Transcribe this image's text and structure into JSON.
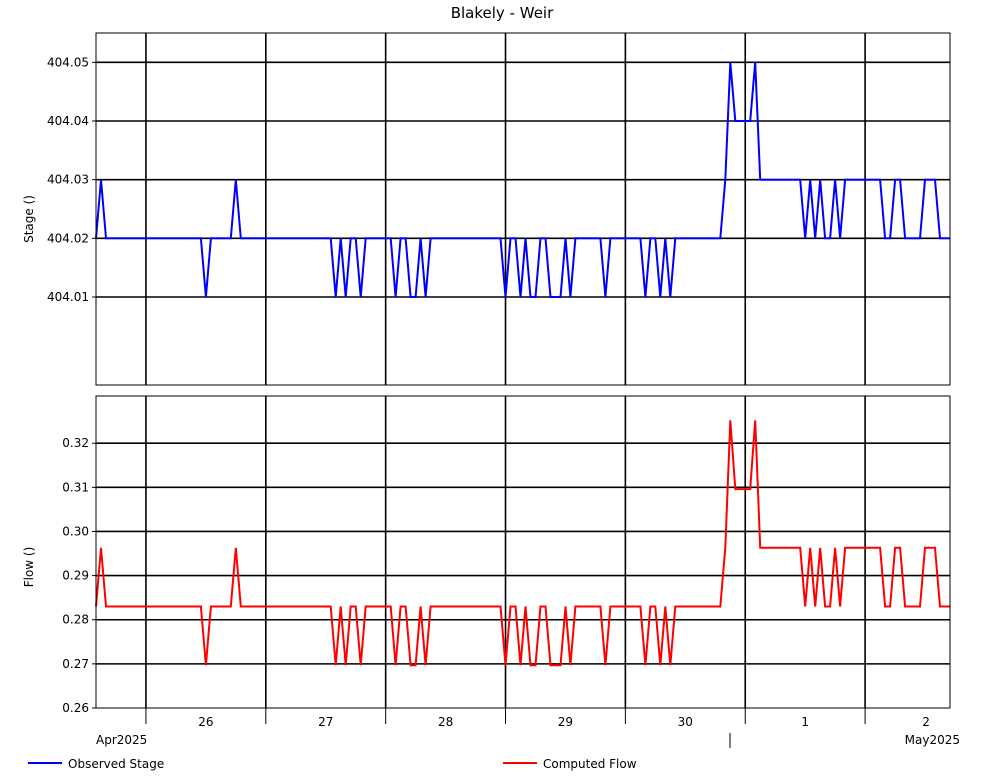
{
  "chart_data": [
    {
      "type": "line",
      "title": "Blakely - Weir",
      "ylabel": "Stage ()",
      "ylim": [
        403.995,
        404.055
      ],
      "yticks": [
        404.01,
        404.02,
        404.03,
        404.04,
        404.05
      ],
      "ytick_labels": [
        "404.01",
        "404.02",
        "404.03",
        "404.04",
        "404.05"
      ],
      "grid": true,
      "x_start": "2025-04-25T14:00",
      "x_end": "2025-05-02T17:00",
      "series": [
        {
          "name": "Observed Stage",
          "color": "#0000ff",
          "values": [
            [
              "2025-04-25T14:00",
              404.02
            ],
            [
              "2025-04-25T15:00",
              404.03
            ],
            [
              "2025-04-25T16:00",
              404.02
            ],
            [
              "2025-04-26T11:00",
              404.02
            ],
            [
              "2025-04-26T12:00",
              404.01
            ],
            [
              "2025-04-26T13:00",
              404.02
            ],
            [
              "2025-04-26T17:00",
              404.02
            ],
            [
              "2025-04-26T18:00",
              404.03
            ],
            [
              "2025-04-26T19:00",
              404.02
            ],
            [
              "2025-04-27T13:00",
              404.02
            ],
            [
              "2025-04-27T14:00",
              404.01
            ],
            [
              "2025-04-27T15:00",
              404.02
            ],
            [
              "2025-04-27T16:00",
              404.01
            ],
            [
              "2025-04-27T17:00",
              404.02
            ],
            [
              "2025-04-27T18:00",
              404.02
            ],
            [
              "2025-04-27T19:00",
              404.01
            ],
            [
              "2025-04-27T20:00",
              404.02
            ],
            [
              "2025-04-28T01:00",
              404.02
            ],
            [
              "2025-04-28T02:00",
              404.01
            ],
            [
              "2025-04-28T03:00",
              404.02
            ],
            [
              "2025-04-28T04:00",
              404.02
            ],
            [
              "2025-04-28T05:00",
              404.01
            ],
            [
              "2025-04-28T06:00",
              404.01
            ],
            [
              "2025-04-28T07:00",
              404.02
            ],
            [
              "2025-04-28T08:00",
              404.01
            ],
            [
              "2025-04-28T09:00",
              404.02
            ],
            [
              "2025-04-28T23:00",
              404.02
            ],
            [
              "2025-04-29T00:00",
              404.01
            ],
            [
              "2025-04-29T01:00",
              404.02
            ],
            [
              "2025-04-29T02:00",
              404.02
            ],
            [
              "2025-04-29T03:00",
              404.01
            ],
            [
              "2025-04-29T04:00",
              404.02
            ],
            [
              "2025-04-29T05:00",
              404.01
            ],
            [
              "2025-04-29T06:00",
              404.01
            ],
            [
              "2025-04-29T07:00",
              404.02
            ],
            [
              "2025-04-29T08:00",
              404.02
            ],
            [
              "2025-04-29T09:00",
              404.01
            ],
            [
              "2025-04-29T11:00",
              404.01
            ],
            [
              "2025-04-29T12:00",
              404.02
            ],
            [
              "2025-04-29T13:00",
              404.01
            ],
            [
              "2025-04-29T14:00",
              404.02
            ],
            [
              "2025-04-29T18:00",
              404.02
            ],
            [
              "2025-04-29T19:00",
              404.02
            ],
            [
              "2025-04-29T20:00",
              404.01
            ],
            [
              "2025-04-29T21:00",
              404.02
            ],
            [
              "2025-04-30T03:00",
              404.02
            ],
            [
              "2025-04-30T04:00",
              404.01
            ],
            [
              "2025-04-30T05:00",
              404.02
            ],
            [
              "2025-04-30T06:00",
              404.02
            ],
            [
              "2025-04-30T07:00",
              404.01
            ],
            [
              "2025-04-30T08:00",
              404.02
            ],
            [
              "2025-04-30T09:00",
              404.01
            ],
            [
              "2025-04-30T10:00",
              404.02
            ],
            [
              "2025-04-30T12:00",
              404.02
            ],
            [
              "2025-04-30T19:00",
              404.02
            ],
            [
              "2025-04-30T20:00",
              404.03
            ],
            [
              "2025-04-30T21:00",
              404.05
            ],
            [
              "2025-04-30T22:00",
              404.04
            ],
            [
              "2025-04-30T23:00",
              404.04
            ],
            [
              "2025-05-01T01:00",
              404.04
            ],
            [
              "2025-05-01T02:00",
              404.05
            ],
            [
              "2025-05-01T03:00",
              404.03
            ],
            [
              "2025-05-01T11:00",
              404.03
            ],
            [
              "2025-05-01T12:00",
              404.02
            ],
            [
              "2025-05-01T13:00",
              404.03
            ],
            [
              "2025-05-01T14:00",
              404.02
            ],
            [
              "2025-05-01T15:00",
              404.03
            ],
            [
              "2025-05-01T16:00",
              404.02
            ],
            [
              "2025-05-01T17:00",
              404.02
            ],
            [
              "2025-05-01T18:00",
              404.03
            ],
            [
              "2025-05-01T19:00",
              404.02
            ],
            [
              "2025-05-01T20:00",
              404.03
            ],
            [
              "2025-05-02T01:00",
              404.03
            ],
            [
              "2025-05-02T03:00",
              404.03
            ],
            [
              "2025-05-02T04:00",
              404.02
            ],
            [
              "2025-05-02T05:00",
              404.02
            ],
            [
              "2025-05-02T06:00",
              404.03
            ],
            [
              "2025-05-02T07:00",
              404.03
            ],
            [
              "2025-05-02T08:00",
              404.02
            ],
            [
              "2025-05-02T10:00",
              404.02
            ],
            [
              "2025-05-02T11:00",
              404.02
            ],
            [
              "2025-05-02T12:00",
              404.03
            ],
            [
              "2025-05-02T14:00",
              404.03
            ],
            [
              "2025-05-02T15:00",
              404.02
            ],
            [
              "2025-05-02T17:00",
              404.02
            ]
          ]
        }
      ]
    },
    {
      "type": "line",
      "ylabel": "Flow ()",
      "ylim": [
        0.26,
        0.3307
      ],
      "yticks": [
        0.26,
        0.27,
        0.28,
        0.29,
        0.3,
        0.31,
        0.32
      ],
      "ytick_labels": [
        "0.26",
        "0.27",
        "0.28",
        "0.29",
        "0.30",
        "0.31",
        "0.32"
      ],
      "grid": true,
      "x_start": "2025-04-25T14:00",
      "x_end": "2025-05-02T17:00",
      "x_ticks": [
        {
          "date": "2025-04-26T00:00",
          "label": "26"
        },
        {
          "date": "2025-04-27T00:00",
          "label": "27"
        },
        {
          "date": "2025-04-28T00:00",
          "label": "28"
        },
        {
          "date": "2025-04-29T00:00",
          "label": "29"
        },
        {
          "date": "2025-04-30T00:00",
          "label": "30"
        },
        {
          "date": "2025-05-01T00:00",
          "label": "1"
        },
        {
          "date": "2025-05-02T00:00",
          "label": "2"
        }
      ],
      "month_labels": [
        "Apr2025",
        "May2025"
      ],
      "series": [
        {
          "name": "Computed Flow",
          "color": "#ff0000",
          "values": [
            [
              "2025-04-25T14:00",
              0.283
            ],
            [
              "2025-04-25T15:00",
              0.2963
            ],
            [
              "2025-04-25T16:00",
              0.283
            ],
            [
              "2025-04-26T11:00",
              0.283
            ],
            [
              "2025-04-26T12:00",
              0.2697
            ],
            [
              "2025-04-26T13:00",
              0.283
            ],
            [
              "2025-04-26T17:00",
              0.283
            ],
            [
              "2025-04-26T18:00",
              0.2963
            ],
            [
              "2025-04-26T19:00",
              0.283
            ],
            [
              "2025-04-27T13:00",
              0.283
            ],
            [
              "2025-04-27T14:00",
              0.2697
            ],
            [
              "2025-04-27T15:00",
              0.283
            ],
            [
              "2025-04-27T16:00",
              0.2697
            ],
            [
              "2025-04-27T17:00",
              0.283
            ],
            [
              "2025-04-27T18:00",
              0.283
            ],
            [
              "2025-04-27T19:00",
              0.2697
            ],
            [
              "2025-04-27T20:00",
              0.283
            ],
            [
              "2025-04-28T01:00",
              0.283
            ],
            [
              "2025-04-28T02:00",
              0.2697
            ],
            [
              "2025-04-28T03:00",
              0.283
            ],
            [
              "2025-04-28T04:00",
              0.283
            ],
            [
              "2025-04-28T05:00",
              0.2697
            ],
            [
              "2025-04-28T06:00",
              0.2697
            ],
            [
              "2025-04-28T07:00",
              0.283
            ],
            [
              "2025-04-28T08:00",
              0.2697
            ],
            [
              "2025-04-28T09:00",
              0.283
            ],
            [
              "2025-04-28T23:00",
              0.283
            ],
            [
              "2025-04-29T00:00",
              0.2697
            ],
            [
              "2025-04-29T01:00",
              0.283
            ],
            [
              "2025-04-29T02:00",
              0.283
            ],
            [
              "2025-04-29T03:00",
              0.2697
            ],
            [
              "2025-04-29T04:00",
              0.283
            ],
            [
              "2025-04-29T05:00",
              0.2697
            ],
            [
              "2025-04-29T06:00",
              0.2697
            ],
            [
              "2025-04-29T07:00",
              0.283
            ],
            [
              "2025-04-29T08:00",
              0.283
            ],
            [
              "2025-04-29T09:00",
              0.2697
            ],
            [
              "2025-04-29T11:00",
              0.2697
            ],
            [
              "2025-04-29T12:00",
              0.283
            ],
            [
              "2025-04-29T13:00",
              0.2697
            ],
            [
              "2025-04-29T14:00",
              0.283
            ],
            [
              "2025-04-29T18:00",
              0.283
            ],
            [
              "2025-04-29T19:00",
              0.283
            ],
            [
              "2025-04-29T20:00",
              0.2697
            ],
            [
              "2025-04-29T21:00",
              0.283
            ],
            [
              "2025-04-30T03:00",
              0.283
            ],
            [
              "2025-04-30T04:00",
              0.2697
            ],
            [
              "2025-04-30T05:00",
              0.283
            ],
            [
              "2025-04-30T06:00",
              0.283
            ],
            [
              "2025-04-30T07:00",
              0.2697
            ],
            [
              "2025-04-30T08:00",
              0.283
            ],
            [
              "2025-04-30T09:00",
              0.2697
            ],
            [
              "2025-04-30T10:00",
              0.283
            ],
            [
              "2025-04-30T12:00",
              0.283
            ],
            [
              "2025-04-30T19:00",
              0.283
            ],
            [
              "2025-04-30T20:00",
              0.2963
            ],
            [
              "2025-04-30T21:00",
              0.3252
            ],
            [
              "2025-04-30T22:00",
              0.3096
            ],
            [
              "2025-04-30T23:00",
              0.3096
            ],
            [
              "2025-05-01T01:00",
              0.3096
            ],
            [
              "2025-05-01T02:00",
              0.3252
            ],
            [
              "2025-05-01T03:00",
              0.2963
            ],
            [
              "2025-05-01T11:00",
              0.2963
            ],
            [
              "2025-05-01T12:00",
              0.283
            ],
            [
              "2025-05-01T13:00",
              0.2963
            ],
            [
              "2025-05-01T14:00",
              0.283
            ],
            [
              "2025-05-01T15:00",
              0.2963
            ],
            [
              "2025-05-01T16:00",
              0.283
            ],
            [
              "2025-05-01T17:00",
              0.283
            ],
            [
              "2025-05-01T18:00",
              0.2963
            ],
            [
              "2025-05-01T19:00",
              0.283
            ],
            [
              "2025-05-01T20:00",
              0.2963
            ],
            [
              "2025-05-02T01:00",
              0.2963
            ],
            [
              "2025-05-02T03:00",
              0.2963
            ],
            [
              "2025-05-02T04:00",
              0.283
            ],
            [
              "2025-05-02T05:00",
              0.283
            ],
            [
              "2025-05-02T06:00",
              0.2963
            ],
            [
              "2025-05-02T07:00",
              0.2963
            ],
            [
              "2025-05-02T08:00",
              0.283
            ],
            [
              "2025-05-02T10:00",
              0.283
            ],
            [
              "2025-05-02T11:00",
              0.283
            ],
            [
              "2025-05-02T12:00",
              0.2963
            ],
            [
              "2025-05-02T14:00",
              0.2963
            ],
            [
              "2025-05-02T15:00",
              0.283
            ],
            [
              "2025-05-02T17:00",
              0.283
            ]
          ]
        }
      ]
    }
  ],
  "legend": [
    {
      "label": "Observed Stage",
      "color": "#0000ff"
    },
    {
      "label": "Computed Flow",
      "color": "#ff0000"
    }
  ]
}
